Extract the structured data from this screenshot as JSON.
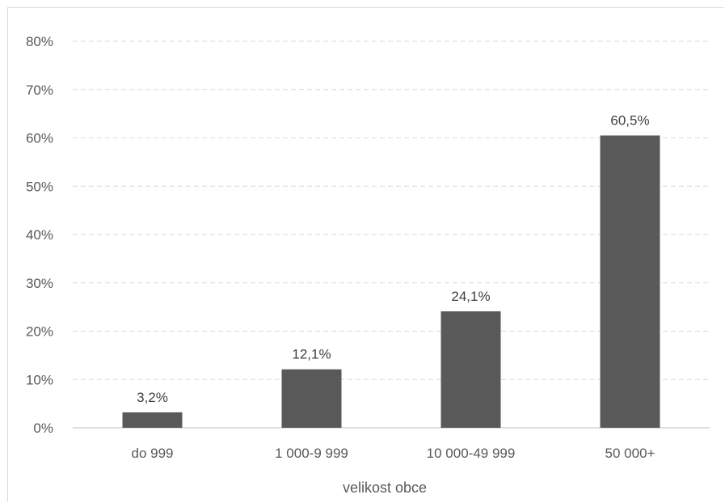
{
  "chart_data": {
    "type": "bar",
    "title": "",
    "xlabel": "velikost obce",
    "ylabel": "",
    "categories": [
      "do 999",
      "1 000-9 999",
      "10 000-49 999",
      "50 000+"
    ],
    "values": [
      3.2,
      12.1,
      24.1,
      60.5
    ],
    "value_labels": [
      "3,2%",
      "12,1%",
      "24,1%",
      "60,5%"
    ],
    "ylim": [
      0,
      80
    ],
    "yticks": [
      0,
      10,
      20,
      30,
      40,
      50,
      60,
      70,
      80
    ],
    "ytick_labels": [
      "0%",
      "10%",
      "20%",
      "30%",
      "40%",
      "50%",
      "60%",
      "70%",
      "80%"
    ],
    "grid": true,
    "grid_style": "dashed",
    "legend": "none",
    "colors": {
      "bar": "#595959",
      "grid": "#d9d9d9",
      "axis": "#bfbfbf",
      "frame": "#d9d9d9"
    }
  }
}
